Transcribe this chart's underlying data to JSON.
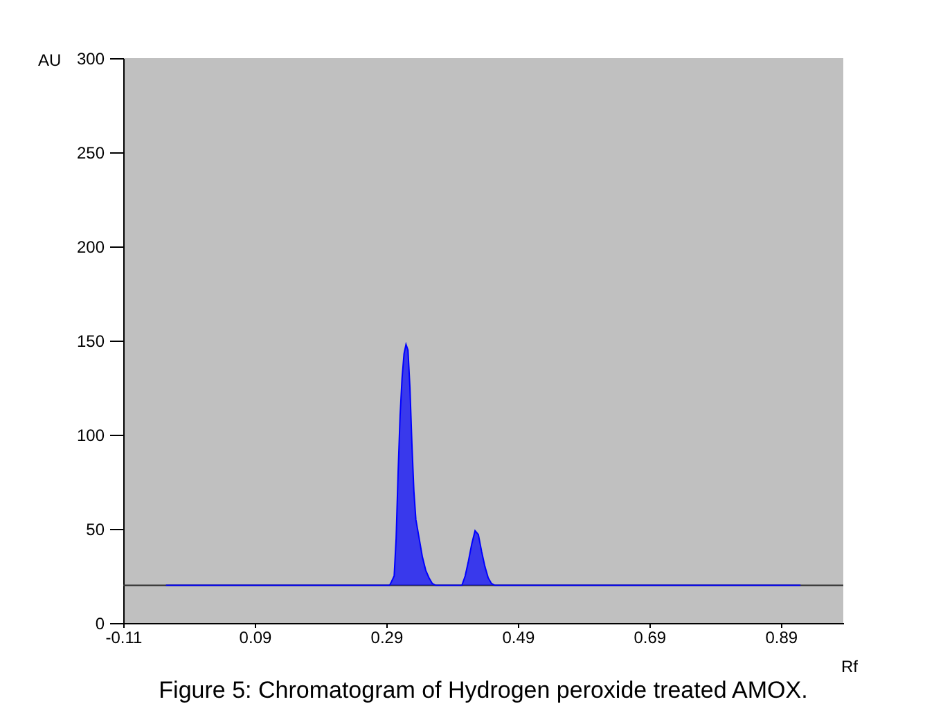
{
  "chart_data": {
    "type": "area",
    "title": "Figure 5: Chromatogram of Hydrogen peroxide treated AMOX.",
    "xlabel": "Rf",
    "ylabel": "AU",
    "x": [
      -0.045,
      0.295,
      0.298,
      0.302,
      0.305,
      0.308,
      0.311,
      0.314,
      0.317,
      0.32,
      0.323,
      0.326,
      0.329,
      0.332,
      0.335,
      0.34,
      0.345,
      0.35,
      0.355,
      0.36,
      0.365,
      0.405,
      0.41,
      0.415,
      0.42,
      0.425,
      0.43,
      0.435,
      0.44,
      0.445,
      0.45,
      0.455,
      0.92
    ],
    "series": [
      {
        "color": "#0000ff",
        "values": [
          20,
          20,
          22,
          25,
          45,
          80,
          110,
          130,
          143,
          148,
          145,
          125,
          95,
          70,
          55,
          45,
          35,
          28,
          24,
          21,
          20,
          20,
          25,
          33,
          42,
          49,
          47,
          38,
          30,
          24,
          21,
          20,
          20
        ]
      }
    ],
    "ref_lines": [
      {
        "axis": "y",
        "value": 20,
        "color": "#333333"
      }
    ],
    "xlim": [
      -0.11,
      0.985
    ],
    "ylim": [
      0,
      300
    ],
    "xticks": [
      -0.11,
      0.09,
      0.29,
      0.49,
      0.69,
      0.89
    ],
    "yticks": [
      0,
      50,
      100,
      150,
      200,
      250,
      300
    ],
    "grid": false
  }
}
